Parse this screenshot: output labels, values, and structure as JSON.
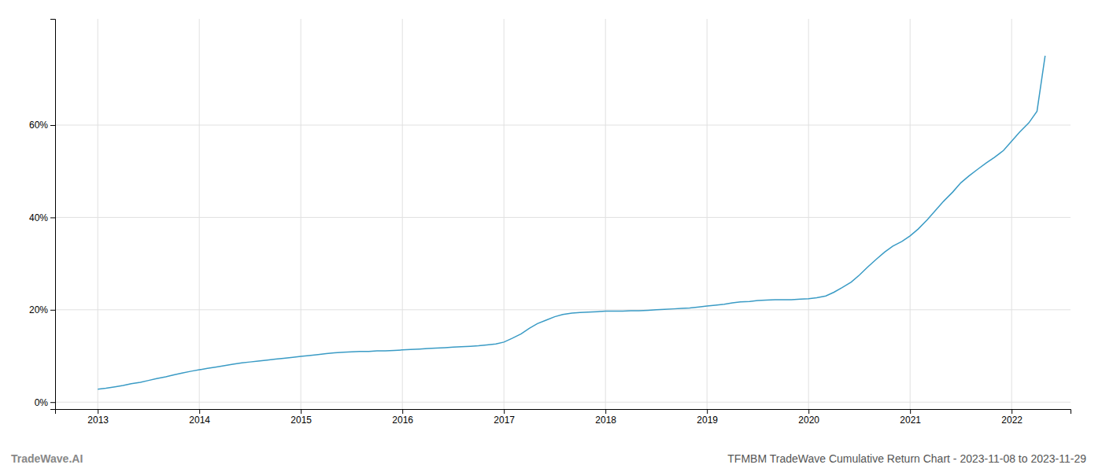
{
  "chart_data": {
    "type": "line",
    "title": "TFMBM TradeWave Cumulative Return Chart - 2023-11-08 to 2023-11-29",
    "annotations": [
      "TradeWave.AI"
    ],
    "color": "#3a9bc5",
    "grid": true,
    "x": [
      2013.0,
      2013.08,
      2013.17,
      2013.25,
      2013.33,
      2013.42,
      2013.5,
      2013.58,
      2013.67,
      2013.75,
      2013.83,
      2013.92,
      2014.0,
      2014.08,
      2014.17,
      2014.25,
      2014.33,
      2014.42,
      2014.5,
      2014.58,
      2014.67,
      2014.75,
      2014.83,
      2014.92,
      2015.0,
      2015.08,
      2015.17,
      2015.25,
      2015.33,
      2015.42,
      2015.5,
      2015.58,
      2015.67,
      2015.75,
      2015.83,
      2015.92,
      2016.0,
      2016.08,
      2016.17,
      2016.25,
      2016.33,
      2016.42,
      2016.5,
      2016.58,
      2016.67,
      2016.75,
      2016.83,
      2016.92,
      2017.0,
      2017.08,
      2017.17,
      2017.25,
      2017.33,
      2017.42,
      2017.5,
      2017.58,
      2017.67,
      2017.75,
      2017.83,
      2017.92,
      2018.0,
      2018.08,
      2018.17,
      2018.25,
      2018.33,
      2018.42,
      2018.5,
      2018.58,
      2018.67,
      2018.75,
      2018.83,
      2018.92,
      2019.0,
      2019.08,
      2019.17,
      2019.25,
      2019.33,
      2019.42,
      2019.5,
      2019.58,
      2019.67,
      2019.75,
      2019.83,
      2019.92,
      2020.0,
      2020.08,
      2020.17,
      2020.25,
      2020.33,
      2020.42,
      2020.5,
      2020.58,
      2020.67,
      2020.75,
      2020.83,
      2020.92,
      2021.0,
      2021.08,
      2021.17,
      2021.25,
      2021.33,
      2021.42,
      2021.5,
      2021.58,
      2021.67,
      2021.75,
      2021.83,
      2021.92,
      2022.0,
      2022.08,
      2022.17,
      2022.25,
      2022.33
    ],
    "values": [
      0.028,
      0.03,
      0.033,
      0.036,
      0.04,
      0.043,
      0.047,
      0.051,
      0.055,
      0.059,
      0.063,
      0.067,
      0.07,
      0.073,
      0.076,
      0.079,
      0.082,
      0.085,
      0.087,
      0.089,
      0.091,
      0.093,
      0.095,
      0.097,
      0.099,
      0.101,
      0.103,
      0.105,
      0.107,
      0.108,
      0.109,
      0.11,
      0.11,
      0.111,
      0.111,
      0.112,
      0.113,
      0.114,
      0.115,
      0.116,
      0.117,
      0.118,
      0.119,
      0.12,
      0.121,
      0.122,
      0.124,
      0.126,
      0.13,
      0.138,
      0.148,
      0.16,
      0.17,
      0.178,
      0.185,
      0.19,
      0.193,
      0.194,
      0.195,
      0.196,
      0.197,
      0.197,
      0.197,
      0.198,
      0.198,
      0.199,
      0.2,
      0.201,
      0.202,
      0.203,
      0.204,
      0.206,
      0.208,
      0.21,
      0.212,
      0.215,
      0.217,
      0.218,
      0.22,
      0.221,
      0.222,
      0.222,
      0.222,
      0.223,
      0.224,
      0.226,
      0.23,
      0.238,
      0.248,
      0.26,
      0.275,
      0.292,
      0.31,
      0.325,
      0.338,
      0.348,
      0.36,
      0.375,
      0.395,
      0.415,
      0.435,
      0.455,
      0.475,
      0.49,
      0.505,
      0.518,
      0.53,
      0.545,
      0.565,
      0.585,
      0.605,
      0.63,
      0.75
    ],
    "xlim": [
      2012.58,
      2022.58
    ],
    "xticks": [
      2013,
      2014,
      2015,
      2016,
      2017,
      2018,
      2019,
      2020,
      2021,
      2022
    ],
    "ylim": [
      -0.015,
      0.83
    ],
    "yticks": [
      {
        "value": 0.0,
        "label": "0%"
      },
      {
        "value": 0.2,
        "label": "20%"
      },
      {
        "value": 0.4,
        "label": "40%"
      },
      {
        "value": 0.6,
        "label": "60%"
      }
    ]
  }
}
